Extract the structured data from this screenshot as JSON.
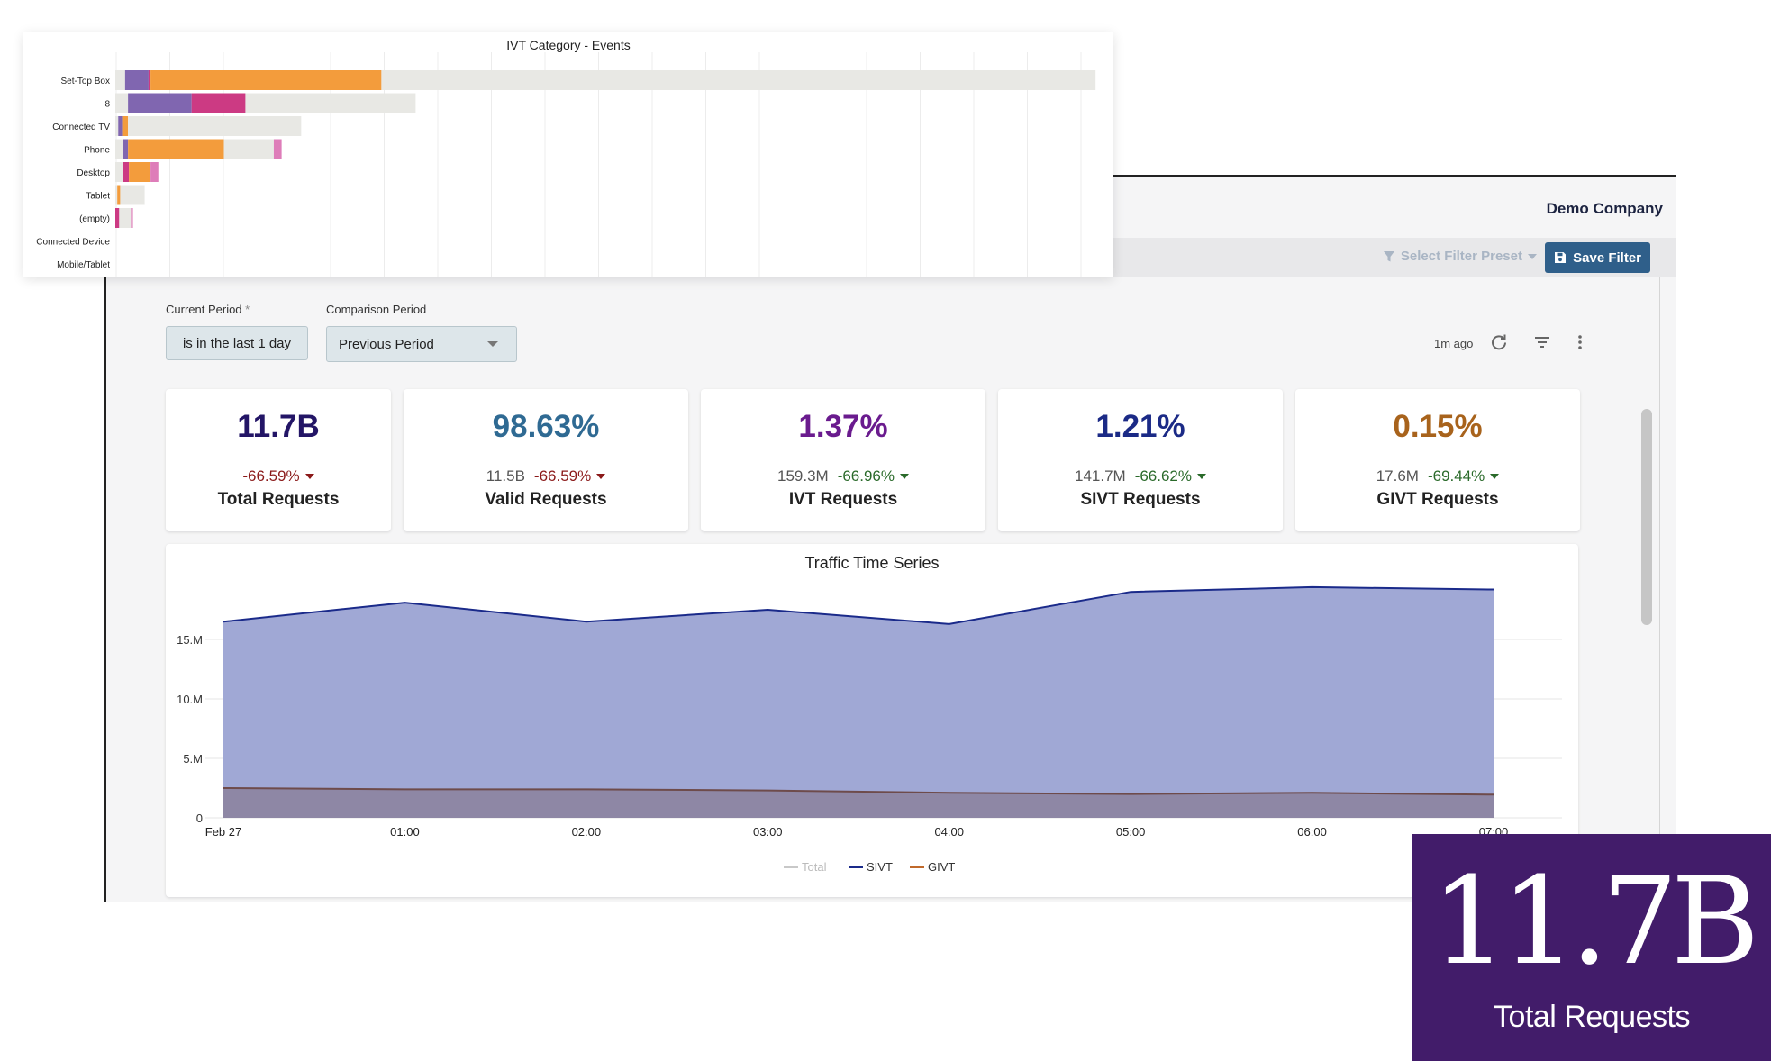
{
  "header": {
    "company": "Demo Company",
    "filter_preset_label": "Select Filter Preset",
    "save_filter_label": "Save Filter"
  },
  "filters": {
    "current_period_label": "Current Period",
    "required_mark": "*",
    "current_period_value": "is in the last 1 day",
    "comparison_period_label": "Comparison Period",
    "comparison_period_value": "Previous Period",
    "last_updated": "1m ago"
  },
  "icons": {
    "refresh": "refresh-icon",
    "filter": "filter-list-icon",
    "more": "more-vertical-icon",
    "preset": "funnel-icon",
    "save": "floppy-disk-icon"
  },
  "kpis": [
    {
      "value": "11.7B",
      "count": "",
      "delta": "-66.59%",
      "label": "Total Requests",
      "color": "#231566",
      "delta_color": "#8b1a1a"
    },
    {
      "value": "98.63%",
      "count": "11.5B",
      "delta": "-66.59%",
      "label": "Valid Requests",
      "color": "#2f6a93",
      "delta_color": "#8b1a1a"
    },
    {
      "value": "1.37%",
      "count": "159.3M",
      "delta": "-66.96%",
      "label": "IVT Requests",
      "color": "#6a1b8e",
      "delta_color": "#2a6a2a"
    },
    {
      "value": "1.21%",
      "count": "141.7M",
      "delta": "-66.62%",
      "label": "SIVT Requests",
      "color": "#1b2a86",
      "delta_color": "#2a6a2a"
    },
    {
      "value": "0.15%",
      "count": "17.6M",
      "delta": "-69.44%",
      "label": "GIVT Requests",
      "color": "#a8631c",
      "delta_color": "#2a6a2a"
    }
  ],
  "chart_data": [
    {
      "type": "area",
      "title": "Traffic Time Series",
      "x": [
        "Feb 27",
        "01:00",
        "02:00",
        "03:00",
        "04:00",
        "05:00",
        "06:00",
        "07:00"
      ],
      "y_ticks": [
        "0",
        "5.M",
        "10.M",
        "15.M"
      ],
      "ylim": [
        0,
        20000000
      ],
      "series": [
        {
          "name": "Total",
          "values": [
            16500000,
            18100000,
            16500000,
            17500000,
            16300000,
            19000000,
            19400000,
            19200000
          ],
          "color": "#c8c8c8"
        },
        {
          "name": "SIVT",
          "values": [
            16500000,
            18100000,
            16500000,
            17500000,
            16300000,
            19000000,
            19400000,
            19200000
          ],
          "color": "#1a2a8a",
          "fill": "#a0a8d5"
        },
        {
          "name": "GIVT",
          "values": [
            2500000,
            2400000,
            2400000,
            2300000,
            2100000,
            2000000,
            2100000,
            1950000
          ],
          "color": "#c0692b",
          "fill": "#8e87a5"
        }
      ],
      "grid": true,
      "legend": "bottom"
    },
    {
      "type": "bar",
      "title": "IVT Category - Events",
      "categories": [
        "Set-Top Box",
        "8",
        "Connected TV",
        "Phone",
        "Desktop",
        "Tablet",
        "(empty)",
        "Connected Device",
        "Mobile/Tablet"
      ],
      "orientation": "horizontal",
      "stacked": true,
      "xlim": [
        0,
        100
      ],
      "segment_colors": [
        "#e8e8e4",
        "#8066b0",
        "#cc3a83",
        "#f39c3c",
        "#de7db9"
      ],
      "rows": [
        [
          [
            1,
            "#e8e8e4"
          ],
          [
            2.4,
            "#8066b0"
          ],
          [
            0.2,
            "#cc3a83"
          ],
          [
            23.6,
            "#f39c3c"
          ],
          [
            73,
            "#e8e8e4"
          ]
        ],
        [
          [
            1.3,
            "#e8e8e4"
          ],
          [
            6.5,
            "#8066b0"
          ],
          [
            5.5,
            "#cc3a83"
          ],
          [
            17.4,
            "#e8e8e4"
          ]
        ],
        [
          [
            0.3,
            "#e8e8e4"
          ],
          [
            0.4,
            "#8066b0"
          ],
          [
            0.6,
            "#f39c3c"
          ],
          [
            17.7,
            "#e8e8e4"
          ]
        ],
        [
          [
            0.8,
            "#e8e8e4"
          ],
          [
            0.5,
            "#8066b0"
          ],
          [
            9.8,
            "#f39c3c"
          ],
          [
            5.1,
            "#e8e8e4"
          ],
          [
            0.8,
            "#de7db9"
          ]
        ],
        [
          [
            0.8,
            "#e8e8e4"
          ],
          [
            0.6,
            "#cc3a83"
          ],
          [
            2.2,
            "#f39c3c"
          ],
          [
            0.8,
            "#de7db9"
          ]
        ],
        [
          [
            0.2,
            "#e8e8e4"
          ],
          [
            0.3,
            "#f39c3c"
          ],
          [
            2.5,
            "#e8e8e4"
          ]
        ],
        [
          [
            0.4,
            "#cc3a83"
          ],
          [
            1.2,
            "#e8e8e4"
          ],
          [
            0.2,
            "#de7db9"
          ]
        ],
        [],
        []
      ]
    }
  ],
  "promo": {
    "value": "11.7B",
    "label": "Total Requests"
  }
}
